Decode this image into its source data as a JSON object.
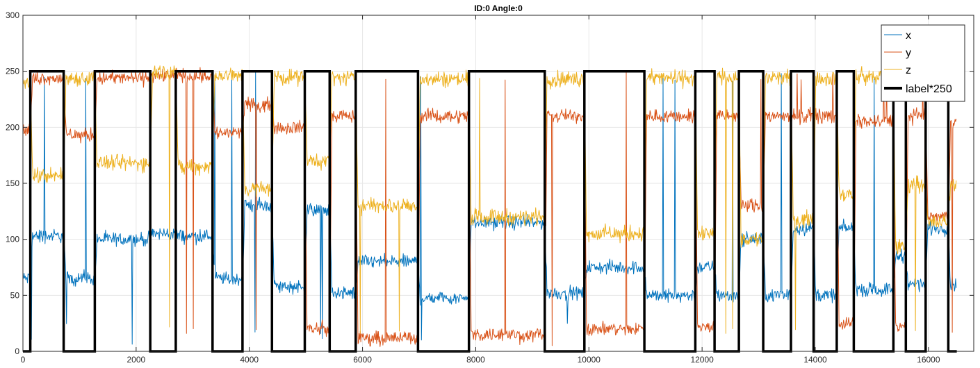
{
  "chart_data": {
    "type": "line",
    "title": "ID:0 Angle:0",
    "xlabel": "",
    "ylabel": "",
    "xlim": [
      0,
      16800
    ],
    "ylim": [
      0,
      300
    ],
    "xticks": [
      0,
      2000,
      4000,
      6000,
      8000,
      10000,
      12000,
      14000,
      16000
    ],
    "yticks": [
      0,
      50,
      100,
      150,
      200,
      250,
      300
    ],
    "grid": true,
    "legend_position": "top-right",
    "segments": [
      {
        "start": 0,
        "end": 130,
        "label": 0,
        "x": 65,
        "y": 197,
        "z": 240
      },
      {
        "start": 130,
        "end": 720,
        "label": 1,
        "x": 103,
        "y": 244,
        "z": 157
      },
      {
        "start": 720,
        "end": 1270,
        "label": 0,
        "x": 65,
        "y": 193,
        "z": 244
      },
      {
        "start": 1270,
        "end": 2250,
        "label": 1,
        "x": 100,
        "y": 244,
        "z": 168
      },
      {
        "start": 2250,
        "end": 2700,
        "label": 0,
        "x": 105,
        "y": 246,
        "z": 250
      },
      {
        "start": 2700,
        "end": 3350,
        "label": 1,
        "x": 103,
        "y": 246,
        "z": 165
      },
      {
        "start": 3350,
        "end": 3880,
        "label": 0,
        "x": 65,
        "y": 195,
        "z": 246
      },
      {
        "start": 3880,
        "end": 4400,
        "label": 1,
        "x": 130,
        "y": 220,
        "z": 145
      },
      {
        "start": 4400,
        "end": 4980,
        "label": 0,
        "x": 58,
        "y": 200,
        "z": 245
      },
      {
        "start": 4980,
        "end": 5420,
        "label": 1,
        "x": 126,
        "y": 20,
        "z": 170
      },
      {
        "start": 5420,
        "end": 5880,
        "label": 0,
        "x": 52,
        "y": 210,
        "z": 244
      },
      {
        "start": 5880,
        "end": 6980,
        "label": 1,
        "x": 80,
        "y": 12,
        "z": 130
      },
      {
        "start": 6980,
        "end": 7880,
        "label": 0,
        "x": 48,
        "y": 210,
        "z": 243
      },
      {
        "start": 7880,
        "end": 9220,
        "label": 1,
        "x": 115,
        "y": 15,
        "z": 120
      },
      {
        "start": 9220,
        "end": 9920,
        "label": 0,
        "x": 52,
        "y": 210,
        "z": 243
      },
      {
        "start": 9920,
        "end": 10980,
        "label": 1,
        "x": 75,
        "y": 20,
        "z": 105
      },
      {
        "start": 10980,
        "end": 11880,
        "label": 0,
        "x": 50,
        "y": 210,
        "z": 244
      },
      {
        "start": 11880,
        "end": 12220,
        "label": 1,
        "x": 75,
        "y": 22,
        "z": 105
      },
      {
        "start": 12220,
        "end": 12650,
        "label": 0,
        "x": 50,
        "y": 210,
        "z": 245
      },
      {
        "start": 12650,
        "end": 13080,
        "label": 1,
        "x": 100,
        "y": 130,
        "z": 100
      },
      {
        "start": 13080,
        "end": 13570,
        "label": 0,
        "x": 50,
        "y": 210,
        "z": 244
      },
      {
        "start": 13570,
        "end": 13970,
        "label": 1,
        "x": 110,
        "y": 210,
        "z": 118
      },
      {
        "start": 13970,
        "end": 14380,
        "label": 0,
        "x": 50,
        "y": 210,
        "z": 244
      },
      {
        "start": 14380,
        "end": 14680,
        "label": 1,
        "x": 110,
        "y": 25,
        "z": 140
      },
      {
        "start": 14680,
        "end": 15380,
        "label": 0,
        "x": 55,
        "y": 205,
        "z": 245
      },
      {
        "start": 15380,
        "end": 15600,
        "label": 1,
        "x": 85,
        "y": 22,
        "z": 93
      },
      {
        "start": 15600,
        "end": 15950,
        "label": 0,
        "x": 60,
        "y": 210,
        "z": 150
      },
      {
        "start": 15950,
        "end": 16350,
        "label": 1,
        "x": 110,
        "y": 120,
        "z": 115
      },
      {
        "start": 16350,
        "end": 16500,
        "label": 0,
        "x": 60,
        "y": 205,
        "z": 150
      }
    ],
    "series": [
      {
        "name": "x",
        "color": "#0072BD"
      },
      {
        "name": "y",
        "color": "#D95319"
      },
      {
        "name": "z",
        "color": "#EDB120"
      },
      {
        "name": "label*250",
        "color": "#000000"
      }
    ]
  }
}
